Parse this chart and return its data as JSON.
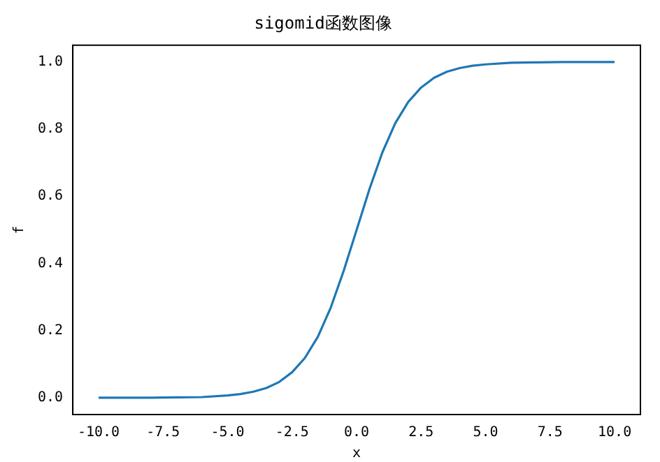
{
  "chart_data": {
    "type": "line",
    "title": "sigomid函数图像",
    "xlabel": "x",
    "ylabel": "f",
    "x": [
      -10,
      -9,
      -8,
      -7,
      -6,
      -5,
      -4.5,
      -4,
      -3.5,
      -3,
      -2.5,
      -2,
      -1.5,
      -1,
      -0.5,
      0,
      0.5,
      1,
      1.5,
      2,
      2.5,
      3,
      3.5,
      4,
      4.5,
      5,
      6,
      7,
      8,
      9,
      10
    ],
    "series": [
      {
        "color": "#1f77b4",
        "values": [
          0,
          0,
          0,
          0.001,
          0.002,
          0.007,
          0.011,
          0.018,
          0.029,
          0.047,
          0.076,
          0.119,
          0.182,
          0.269,
          0.378,
          0.5,
          0.622,
          0.731,
          0.818,
          0.881,
          0.924,
          0.953,
          0.971,
          0.982,
          0.989,
          0.993,
          0.998,
          0.999,
          1,
          1,
          1
        ]
      }
    ],
    "xlim": [
      -11,
      11
    ],
    "ylim": [
      -0.05,
      1.05
    ],
    "xticks": [
      {
        "value": -10,
        "label": "-10.0"
      },
      -7.5,
      {
        "value": -5,
        "label": "-5.0"
      },
      -2.5,
      {
        "value": 0,
        "label": "0.0"
      },
      2.5,
      {
        "value": 5,
        "label": "5.0"
      },
      7.5,
      {
        "value": 10,
        "label": "10.0"
      }
    ],
    "yticks": [
      {
        "value": 0,
        "label": "0.0"
      },
      {
        "value": 0.2,
        "label": "0.2"
      },
      {
        "value": 0.4,
        "label": "0.4"
      },
      {
        "value": 0.6,
        "label": "0.6"
      },
      {
        "value": 0.8,
        "label": "0.8"
      },
      {
        "value": 1,
        "label": "1.0"
      }
    ],
    "grid": false,
    "legend": false,
    "marker": "none",
    "line_style": "solid"
  }
}
